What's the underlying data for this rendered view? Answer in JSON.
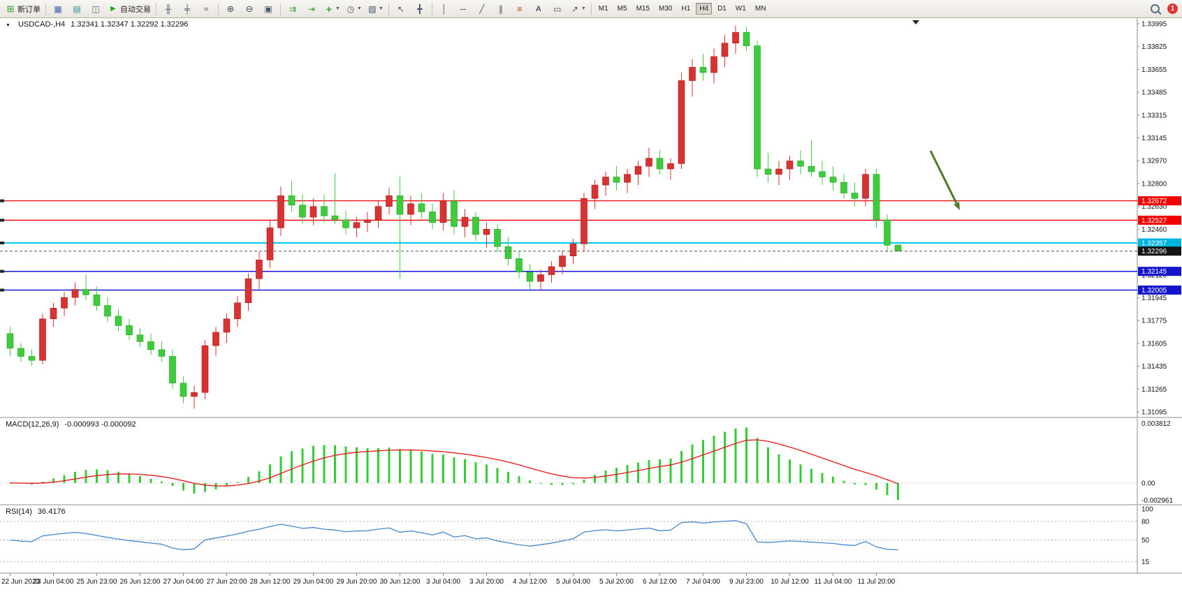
{
  "toolbar": {
    "new_order_label": "新订单",
    "autotrading_label": "自动交易",
    "timeframes": [
      "M1",
      "M5",
      "M15",
      "M30",
      "H1",
      "H4",
      "D1",
      "W1",
      "MN"
    ],
    "active_timeframe": "H4",
    "badge_count": "1"
  },
  "chart_data": {
    "type": "candlestick",
    "symbol": "USDCAD-",
    "timeframe": "H4",
    "title": "USDCAD-,H4",
    "ohlc_display": "1.32341 1.32347 1.32292 1.32296",
    "bull_color": "#d83232",
    "bull_stroke": "#aa1818",
    "bear_color": "#3ccc3c",
    "bear_stroke": "#22a022",
    "price_min": 1.31095,
    "price_max": 1.33995,
    "price_ticks": [
      "1.33995",
      "1.33825",
      "1.33655",
      "1.33485",
      "1.33315",
      "1.33145",
      "1.32970",
      "1.32800",
      "1.32630",
      "1.32460",
      "1.32290",
      "1.32120",
      "1.31945",
      "1.31775",
      "1.31605",
      "1.31435",
      "1.31265",
      "1.31095"
    ],
    "time_labels": [
      "22 Jun 2023",
      "23 Jun 04:00",
      "25 Jun 23:00",
      "26 Jun 12:00",
      "27 Jun 04:00",
      "27 Jun 20:00",
      "28 Jun 12:00",
      "29 Jun 04:00",
      "29 Jun 20:00",
      "30 Jun 12:00",
      "3 Jul 04:00",
      "3 Jul 20:00",
      "4 Jul 12:00",
      "5 Jul 04:00",
      "5 Jul 20:00",
      "6 Jul 12:00",
      "7 Jul 04:00",
      "9 Jul 23:00",
      "10 Jul 12:00",
      "11 Jul 04:00",
      "11 Jul 20:00"
    ],
    "label_every": 4,
    "hlines": [
      {
        "price": 1.32672,
        "label": "1.32672",
        "color": "#f40000",
        "tag": "#f20000",
        "width": 1.3
      },
      {
        "price": 1.32527,
        "label": "1.32527",
        "color": "#f40000",
        "tag": "#f20000",
        "width": 1.3
      },
      {
        "price": 1.32357,
        "label": "1.32357",
        "color": "#00c8f0",
        "tag": "#00b4e0",
        "width": 2
      },
      {
        "price": 1.32145,
        "label": "1.32145",
        "color": "#1616e0",
        "tag": "#1414cd",
        "width": 1.5
      },
      {
        "price": 1.32005,
        "label": "1.32005",
        "color": "#1616e0",
        "tag": "#1414cd",
        "width": 1.5
      }
    ],
    "current_price": {
      "value": 1.32296,
      "label": "1.32296",
      "tag": "#141414",
      "line_color": "#555555"
    },
    "arrow_color": "#4e7a22",
    "candles": [
      [
        1.3168,
        1.3173,
        1.3151,
        1.3157
      ],
      [
        1.3157,
        1.3161,
        1.3147,
        1.3151
      ],
      [
        1.3151,
        1.3156,
        1.3144,
        1.3148
      ],
      [
        1.3148,
        1.3183,
        1.3145,
        1.3179
      ],
      [
        1.3179,
        1.3191,
        1.3173,
        1.3187
      ],
      [
        1.3187,
        1.3199,
        1.3181,
        1.3195
      ],
      [
        1.3195,
        1.3206,
        1.3189,
        1.3201
      ],
      [
        1.3201,
        1.3212,
        1.3193,
        1.3197
      ],
      [
        1.3197,
        1.3203,
        1.3185,
        1.3189
      ],
      [
        1.3189,
        1.3195,
        1.3177,
        1.3181
      ],
      [
        1.3181,
        1.3186,
        1.317,
        1.3174
      ],
      [
        1.3174,
        1.3179,
        1.3163,
        1.3167
      ],
      [
        1.3167,
        1.3172,
        1.3158,
        1.3162
      ],
      [
        1.3162,
        1.3168,
        1.3152,
        1.3156
      ],
      [
        1.3156,
        1.3162,
        1.3147,
        1.3151
      ],
      [
        1.3151,
        1.3156,
        1.3127,
        1.3131
      ],
      [
        1.3131,
        1.3136,
        1.3116,
        1.3121
      ],
      [
        1.3121,
        1.3129,
        1.3112,
        1.3124
      ],
      [
        1.3124,
        1.3163,
        1.3119,
        1.3159
      ],
      [
        1.3159,
        1.3173,
        1.3151,
        1.3169
      ],
      [
        1.3169,
        1.3183,
        1.3161,
        1.3179
      ],
      [
        1.3179,
        1.3196,
        1.3173,
        1.3191
      ],
      [
        1.3191,
        1.3213,
        1.3185,
        1.3209
      ],
      [
        1.3209,
        1.3229,
        1.3201,
        1.3223
      ],
      [
        1.3223,
        1.3253,
        1.3217,
        1.3247
      ],
      [
        1.3247,
        1.3278,
        1.3241,
        1.3271
      ],
      [
        1.3271,
        1.3282,
        1.3259,
        1.3264
      ],
      [
        1.3264,
        1.3272,
        1.325,
        1.3255
      ],
      [
        1.3255,
        1.3269,
        1.3249,
        1.3263
      ],
      [
        1.3263,
        1.3272,
        1.3251,
        1.3256
      ],
      [
        1.3256,
        1.3288,
        1.325,
        1.3253
      ],
      [
        1.3253,
        1.326,
        1.3242,
        1.3247
      ],
      [
        1.3247,
        1.3255,
        1.324,
        1.3251
      ],
      [
        1.3251,
        1.3259,
        1.3244,
        1.3253
      ],
      [
        1.3253,
        1.3267,
        1.3247,
        1.3263
      ],
      [
        1.3263,
        1.3277,
        1.3257,
        1.3271
      ],
      [
        1.3271,
        1.3285,
        1.3209,
        1.3257
      ],
      [
        1.3257,
        1.3271,
        1.3249,
        1.3265
      ],
      [
        1.3265,
        1.3273,
        1.3254,
        1.3259
      ],
      [
        1.3259,
        1.3265,
        1.3246,
        1.3251
      ],
      [
        1.3251,
        1.3273,
        1.3245,
        1.3267
      ],
      [
        1.3267,
        1.3275,
        1.3242,
        1.3248
      ],
      [
        1.3248,
        1.3261,
        1.324,
        1.3255
      ],
      [
        1.3255,
        1.3259,
        1.3237,
        1.3242
      ],
      [
        1.3242,
        1.3251,
        1.3232,
        1.3246
      ],
      [
        1.3246,
        1.325,
        1.3229,
        1.3233
      ],
      [
        1.3233,
        1.324,
        1.3219,
        1.3224
      ],
      [
        1.3224,
        1.323,
        1.3209,
        1.3214
      ],
      [
        1.3214,
        1.322,
        1.3201,
        1.3207
      ],
      [
        1.3207,
        1.3216,
        1.32,
        1.3212
      ],
      [
        1.3212,
        1.3222,
        1.3206,
        1.3218
      ],
      [
        1.3218,
        1.323,
        1.3212,
        1.3226
      ],
      [
        1.3226,
        1.3239,
        1.322,
        1.3235
      ],
      [
        1.3235,
        1.3273,
        1.3229,
        1.3269
      ],
      [
        1.3269,
        1.3283,
        1.3261,
        1.3279
      ],
      [
        1.3279,
        1.3289,
        1.3271,
        1.3285
      ],
      [
        1.3285,
        1.3293,
        1.3275,
        1.3281
      ],
      [
        1.3281,
        1.3291,
        1.3273,
        1.3287
      ],
      [
        1.3287,
        1.3297,
        1.3279,
        1.3293
      ],
      [
        1.3293,
        1.3307,
        1.3285,
        1.3299
      ],
      [
        1.3299,
        1.3305,
        1.3287,
        1.3291
      ],
      [
        1.3291,
        1.3299,
        1.3283,
        1.3295
      ],
      [
        1.3295,
        1.3363,
        1.3291,
        1.3357
      ],
      [
        1.3357,
        1.3373,
        1.3345,
        1.3367
      ],
      [
        1.3367,
        1.3377,
        1.3357,
        1.3363
      ],
      [
        1.3363,
        1.3381,
        1.3355,
        1.3375
      ],
      [
        1.3375,
        1.3391,
        1.3367,
        1.3385
      ],
      [
        1.3385,
        1.3398,
        1.3377,
        1.3393
      ],
      [
        1.3393,
        1.3397,
        1.3379,
        1.3383
      ],
      [
        1.3383,
        1.3387,
        1.3285,
        1.3291
      ],
      [
        1.3291,
        1.3303,
        1.3281,
        1.3287
      ],
      [
        1.3287,
        1.3297,
        1.3279,
        1.3291
      ],
      [
        1.3291,
        1.3301,
        1.3283,
        1.3297
      ],
      [
        1.3297,
        1.3305,
        1.3287,
        1.3293
      ],
      [
        1.3293,
        1.3313,
        1.3285,
        1.3289
      ],
      [
        1.3289,
        1.3297,
        1.3279,
        1.3285
      ],
      [
        1.3285,
        1.3293,
        1.3275,
        1.3281
      ],
      [
        1.3281,
        1.3287,
        1.3269,
        1.3273
      ],
      [
        1.3273,
        1.3281,
        1.3263,
        1.3269
      ],
      [
        1.3269,
        1.3291,
        1.3263,
        1.3287
      ],
      [
        1.3287,
        1.3291,
        1.3247,
        1.3253
      ],
      [
        1.3253,
        1.3257,
        1.3229,
        1.3234
      ],
      [
        1.32341,
        1.32347,
        1.32292,
        1.32296
      ]
    ],
    "indicators": [
      {
        "type": "macd",
        "fast": 12,
        "slow": 26,
        "signal": 9,
        "label": "MACD(12,26,9)",
        "display_values": "-0.000993 -0.000092",
        "axis_labels": [
          "0.003812",
          "0.00",
          "-0.002961"
        ],
        "hist_color": "#35cd35",
        "signal_color": "#e81414"
      },
      {
        "type": "rsi",
        "period": 14,
        "label": "RSI(14)",
        "display_value": "36.4176",
        "levels": [
          {
            "v": 100,
            "label": "100"
          },
          {
            "v": 80,
            "label": "80"
          },
          {
            "v": 50,
            "label": "50"
          },
          {
            "v": 15,
            "label": "15"
          }
        ],
        "line_color": "#4585d0"
      }
    ]
  }
}
